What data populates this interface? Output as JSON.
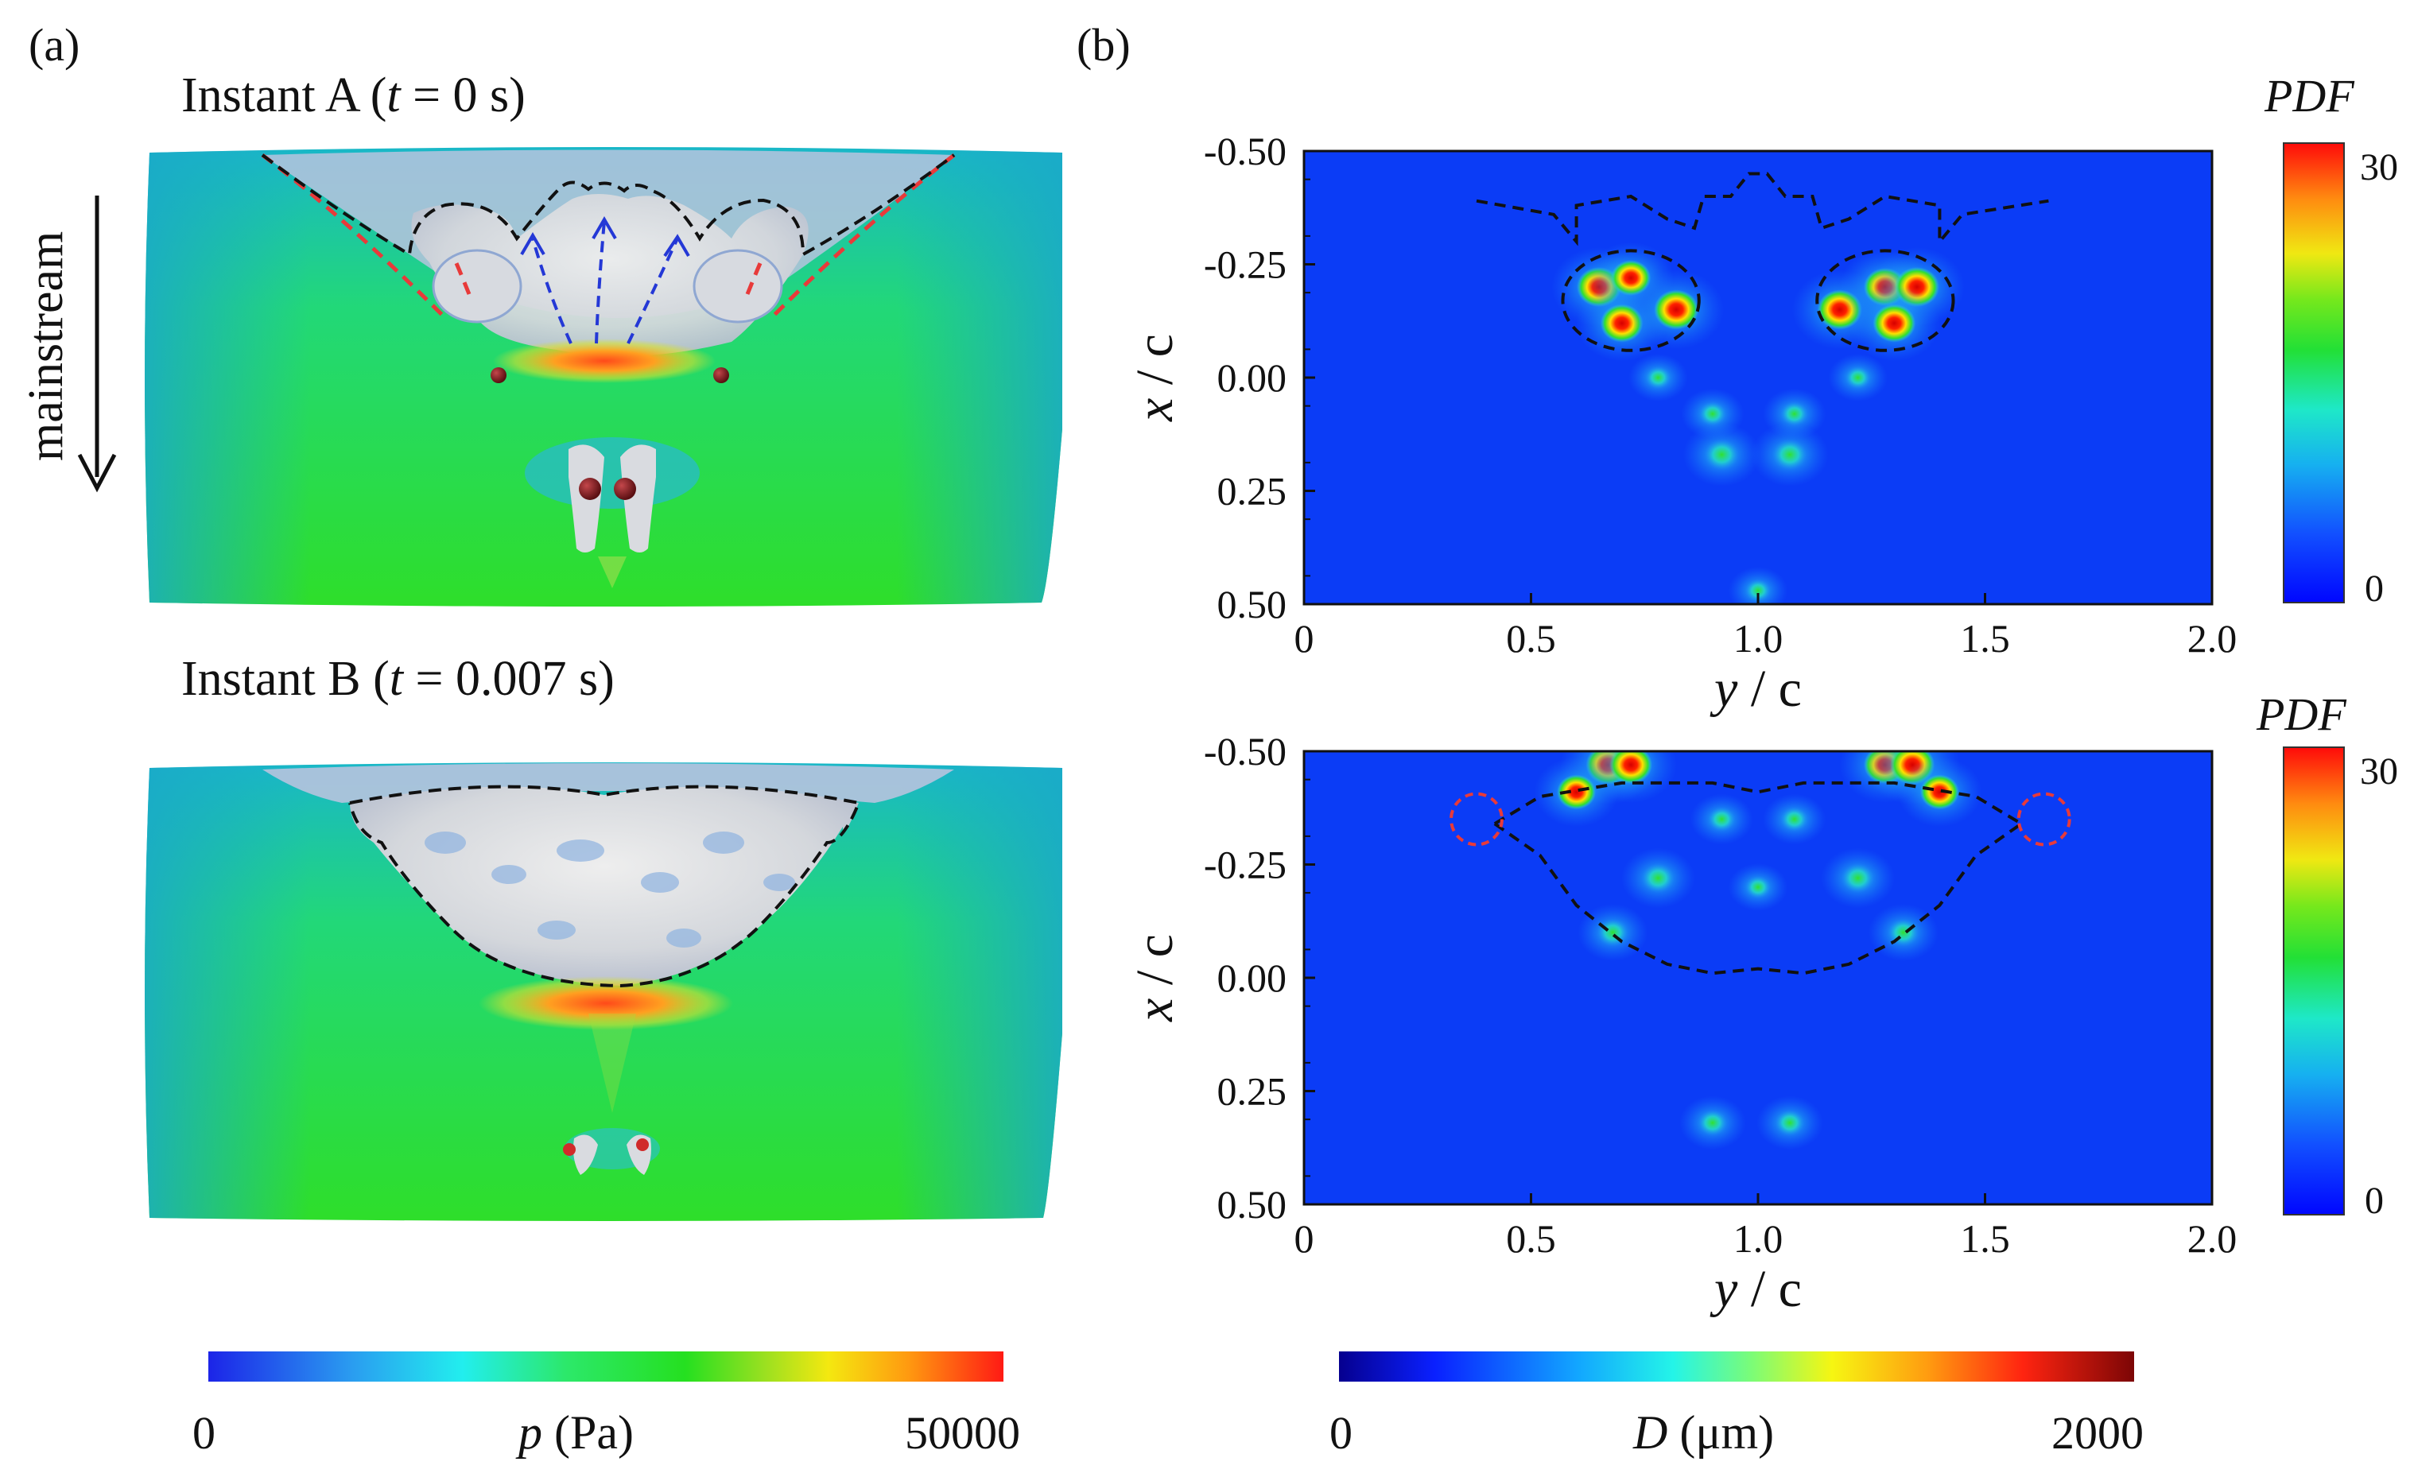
{
  "panel_a": {
    "label": "(a)",
    "mainstream_label": "mainstream",
    "instant_a": {
      "name": "Instant A",
      "t_var": "t",
      "t_value": "= 0 s"
    },
    "instant_b": {
      "name": "Instant B",
      "t_var": "t",
      "t_value": "= 0.007 s"
    },
    "colorbar": {
      "min": "0",
      "max": "50000",
      "var": "p",
      "unit": "(Pa)"
    }
  },
  "panel_b": {
    "label": "(b)",
    "pdf_label": "PDF",
    "colorbar_pdf": {
      "min": "0",
      "max": "30"
    },
    "colorbar_d": {
      "min": "0",
      "max": "2000",
      "var": "D",
      "unit": "(μm)"
    }
  },
  "colors": {
    "field_green": "#22e022",
    "heat_blue": "#0b3cf6",
    "red_dash": "#e83a3a"
  },
  "chart_data": [
    {
      "type": "heatmap",
      "title": "Instant A PDF",
      "xlabel": "y / c",
      "ylabel": "x / c",
      "xlim": [
        0,
        2.0
      ],
      "ylim": [
        0.5,
        -0.5
      ],
      "xticks": [
        "0",
        "0.5",
        "1.0",
        "1.5",
        "2.0"
      ],
      "yticks": [
        "-0.50",
        "-0.25",
        "0.00",
        "0.25",
        "0.50"
      ],
      "colorbar": {
        "label": "PDF",
        "min": 0,
        "max": 30
      },
      "hotspots": [
        {
          "y": 0.65,
          "x": -0.2,
          "pdf": 30
        },
        {
          "y": 0.72,
          "x": -0.22,
          "pdf": 25
        },
        {
          "y": 0.7,
          "x": -0.12,
          "pdf": 28
        },
        {
          "y": 0.82,
          "x": -0.15,
          "pdf": 30
        },
        {
          "y": 1.18,
          "x": -0.15,
          "pdf": 30
        },
        {
          "y": 1.28,
          "x": -0.2,
          "pdf": 28
        },
        {
          "y": 1.35,
          "x": -0.2,
          "pdf": 30
        },
        {
          "y": 1.3,
          "x": -0.12,
          "pdf": 28
        },
        {
          "y": 0.92,
          "x": 0.17,
          "pdf": 20
        },
        {
          "y": 1.07,
          "x": 0.17,
          "pdf": 20
        },
        {
          "y": 0.9,
          "x": 0.08,
          "pdf": 12
        },
        {
          "y": 1.08,
          "x": 0.08,
          "pdf": 12
        },
        {
          "y": 1.0,
          "x": 0.47,
          "pdf": 10
        },
        {
          "y": 0.78,
          "x": 0.0,
          "pdf": 10
        },
        {
          "y": 1.22,
          "x": 0.0,
          "pdf": 10
        }
      ]
    },
    {
      "type": "heatmap",
      "title": "Instant B PDF",
      "xlabel": "y / c",
      "ylabel": "x / c",
      "xlim": [
        0,
        2.0
      ],
      "ylim": [
        0.5,
        -0.5
      ],
      "xticks": [
        "0",
        "0.5",
        "1.0",
        "1.5",
        "2.0"
      ],
      "yticks": [
        "-0.50",
        "-0.25",
        "0.00",
        "0.25",
        "0.50"
      ],
      "colorbar": {
        "label": "PDF",
        "min": 0,
        "max": 30
      },
      "hotspots": [
        {
          "y": 0.67,
          "x": -0.47,
          "pdf": 30
        },
        {
          "y": 0.72,
          "x": -0.47,
          "pdf": 28
        },
        {
          "y": 1.28,
          "x": -0.47,
          "pdf": 28
        },
        {
          "y": 1.34,
          "x": -0.47,
          "pdf": 30
        },
        {
          "y": 0.6,
          "x": -0.41,
          "pdf": 24
        },
        {
          "y": 1.4,
          "x": -0.41,
          "pdf": 24
        },
        {
          "y": 0.78,
          "x": -0.22,
          "pdf": 18
        },
        {
          "y": 1.22,
          "x": -0.22,
          "pdf": 18
        },
        {
          "y": 0.68,
          "x": -0.1,
          "pdf": 16
        },
        {
          "y": 1.32,
          "x": -0.1,
          "pdf": 16
        },
        {
          "y": 0.92,
          "x": -0.35,
          "pdf": 12
        },
        {
          "y": 1.08,
          "x": -0.35,
          "pdf": 12
        },
        {
          "y": 0.9,
          "x": 0.32,
          "pdf": 14
        },
        {
          "y": 1.07,
          "x": 0.32,
          "pdf": 14
        },
        {
          "y": 1.0,
          "x": -0.2,
          "pdf": 10
        }
      ]
    }
  ]
}
